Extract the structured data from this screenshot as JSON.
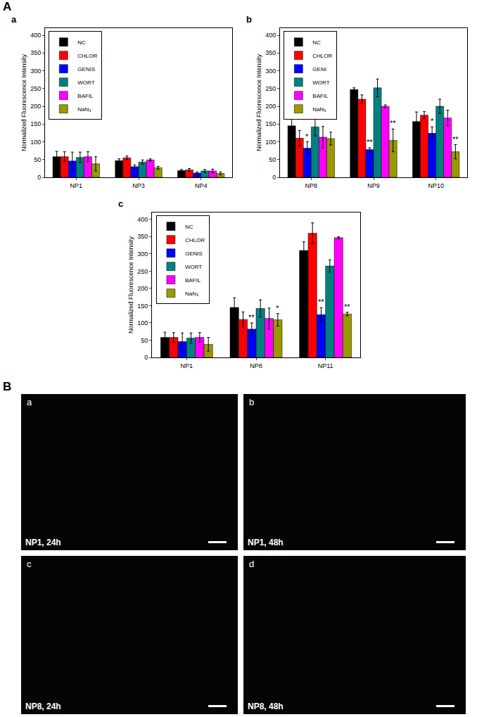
{
  "chart_data": [
    {
      "type": "bar",
      "panel": "a",
      "y_label": "Normalized Fluorescence Intensity",
      "categories": [
        "NP1",
        "NP3",
        "NP4"
      ],
      "series": [
        {
          "name": "NC",
          "color": "#000000",
          "values": [
            58,
            47,
            19
          ],
          "errors": [
            15,
            5,
            3
          ]
        },
        {
          "name": "CHLOR",
          "color": "#ff0000",
          "values": [
            58,
            55,
            21
          ],
          "errors": [
            14,
            5,
            4
          ]
        },
        {
          "name": "GENIS",
          "color": "#0000ff",
          "values": [
            46,
            30,
            12
          ],
          "errors": [
            25,
            5,
            3
          ]
        },
        {
          "name": "WORT",
          "color": "#008080",
          "values": [
            56,
            43,
            18
          ],
          "errors": [
            15,
            6,
            4
          ]
        },
        {
          "name": "BAFIL",
          "color": "#ff00ff",
          "values": [
            58,
            49,
            18
          ],
          "errors": [
            14,
            3,
            5
          ]
        },
        {
          "name": "NaN₃",
          "color": "#999900",
          "values": [
            38,
            27,
            11
          ],
          "errors": [
            20,
            4,
            4
          ]
        }
      ],
      "ylim": [
        0,
        420
      ],
      "yticks": [
        0,
        50,
        100,
        150,
        200,
        250,
        300,
        350,
        400
      ],
      "grid": false,
      "legend": "upper left",
      "annotations": []
    },
    {
      "type": "bar",
      "panel": "b",
      "y_label": "Normalized Fluorescence Intensity",
      "categories": [
        "NP8",
        "NP9",
        "NP10"
      ],
      "series": [
        {
          "name": "NC",
          "color": "#000000",
          "values": [
            145,
            247,
            157
          ],
          "errors": [
            28,
            5,
            27
          ]
        },
        {
          "name": "CHLOR",
          "color": "#ff0000",
          "values": [
            110,
            220,
            175
          ],
          "errors": [
            22,
            12,
            10
          ]
        },
        {
          "name": "GENI",
          "color": "#0000ff",
          "values": [
            82,
            78,
            124
          ],
          "errors": [
            18,
            5,
            18
          ]
        },
        {
          "name": "WORT",
          "color": "#008080",
          "values": [
            142,
            252,
            200
          ],
          "errors": [
            25,
            25,
            20
          ]
        },
        {
          "name": "BAFIL",
          "color": "#ff00ff",
          "values": [
            113,
            200,
            167
          ],
          "errors": [
            30,
            4,
            22
          ]
        },
        {
          "name": "NaN₃",
          "color": "#999900",
          "values": [
            109,
            104,
            72
          ],
          "errors": [
            18,
            32,
            20
          ]
        }
      ],
      "ylim": [
        0,
        420
      ],
      "yticks": [
        0,
        50,
        100,
        150,
        200,
        250,
        300,
        350,
        400
      ],
      "grid": false,
      "legend": "upper left",
      "annotations": [
        {
          "category": "NP8",
          "series": "GENI",
          "text": "*"
        },
        {
          "category": "NP9",
          "series": "GENI",
          "text": "**"
        },
        {
          "category": "NP9",
          "series": "NaN₃",
          "text": "**"
        },
        {
          "category": "NP10",
          "series": "GENI",
          "text": "*"
        },
        {
          "category": "NP10",
          "series": "NaN₃",
          "text": "**"
        }
      ]
    },
    {
      "type": "bar",
      "panel": "c",
      "y_label": "Normalized Fluorescence Intensity",
      "categories": [
        "NP1",
        "NP8",
        "NP11"
      ],
      "series": [
        {
          "name": "NC",
          "color": "#000000",
          "values": [
            58,
            145,
            310
          ],
          "errors": [
            15,
            28,
            25
          ]
        },
        {
          "name": "CHLOR",
          "color": "#ff0000",
          "values": [
            58,
            110,
            360
          ],
          "errors": [
            14,
            22,
            30
          ]
        },
        {
          "name": "GENIS",
          "color": "#0000ff",
          "values": [
            46,
            82,
            124
          ],
          "errors": [
            25,
            18,
            20
          ]
        },
        {
          "name": "WORT",
          "color": "#008080",
          "values": [
            56,
            142,
            265
          ],
          "errors": [
            15,
            25,
            18
          ]
        },
        {
          "name": "BAFIL",
          "color": "#ff00ff",
          "values": [
            58,
            113,
            347
          ],
          "errors": [
            14,
            30,
            3
          ]
        },
        {
          "name": "NaN₃",
          "color": "#999900",
          "values": [
            38,
            109,
            126
          ],
          "errors": [
            20,
            18,
            5
          ]
        }
      ],
      "ylim": [
        0,
        420
      ],
      "yticks": [
        0,
        50,
        100,
        150,
        200,
        250,
        300,
        350,
        400
      ],
      "grid": false,
      "legend": "upper left",
      "annotations": [
        {
          "category": "NP8",
          "series": "GENIS",
          "text": "**"
        },
        {
          "category": "NP8",
          "series": "NaN₃",
          "text": "*"
        },
        {
          "category": "NP11",
          "series": "GENIS",
          "text": "**"
        },
        {
          "category": "NP11",
          "series": "NaN₃",
          "text": "**"
        }
      ]
    }
  ],
  "figure": {
    "panel_labels": [
      "A",
      "B"
    ],
    "images": [
      {
        "panel": "a",
        "caption": "NP1, 24h"
      },
      {
        "panel": "b",
        "caption": "NP1, 48h"
      },
      {
        "panel": "c",
        "caption": "NP8, 24h"
      },
      {
        "panel": "d",
        "caption": "NP8, 48h"
      }
    ]
  }
}
